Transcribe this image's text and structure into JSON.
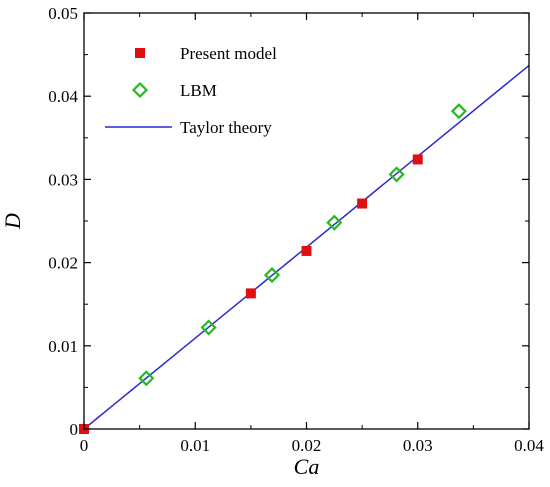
{
  "chart_data": {
    "type": "scatter",
    "xlabel": "Ca",
    "ylabel": "D",
    "xlim": [
      0,
      0.04
    ],
    "ylim": [
      0,
      0.05
    ],
    "x_ticks": [
      "0",
      "0.01",
      "0.02",
      "0.03",
      "0.04"
    ],
    "y_ticks": [
      "0",
      "0.01",
      "0.02",
      "0.03",
      "0.04",
      "0.05"
    ],
    "grid": false,
    "legend_position": "top-left",
    "series": [
      {
        "name": "Present model",
        "marker": "filled-square",
        "color": "#e01010",
        "points": [
          [
            0,
            0
          ],
          [
            0.015,
            0.0163
          ],
          [
            0.02,
            0.0214
          ],
          [
            0.025,
            0.0271
          ],
          [
            0.03,
            0.0324
          ]
        ]
      },
      {
        "name": "LBM",
        "marker": "open-diamond",
        "color": "#22bb22",
        "points": [
          [
            0.0056,
            0.0061
          ],
          [
            0.0112,
            0.0122
          ],
          [
            0.0169,
            0.0185
          ],
          [
            0.0225,
            0.0248
          ],
          [
            0.0281,
            0.0306
          ],
          [
            0.0337,
            0.0382
          ]
        ]
      },
      {
        "name": "Taylor theory",
        "marker": "line",
        "color": "#2a2ad0",
        "points": [
          [
            0,
            0
          ],
          [
            0.04,
            0.0437
          ]
        ]
      }
    ]
  }
}
